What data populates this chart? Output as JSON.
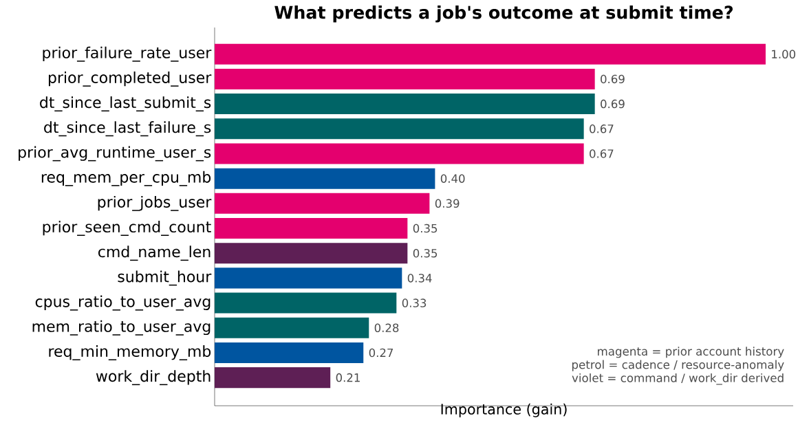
{
  "chart_data": {
    "type": "bar",
    "orientation": "horizontal",
    "title": "What predicts a job's outcome at submit time?",
    "xlabel": "Importance (gain)",
    "categories": [
      "prior_failure_rate_user",
      "prior_completed_user",
      "dt_since_last_submit_s",
      "dt_since_last_failure_s",
      "prior_avg_runtime_user_s",
      "req_mem_per_cpu_mb",
      "prior_jobs_user",
      "prior_seen_cmd_count",
      "cmd_name_len",
      "submit_hour",
      "cpus_ratio_to_user_avg",
      "mem_ratio_to_user_avg",
      "req_min_memory_mb",
      "work_dir_depth"
    ],
    "values": [
      1.0,
      0.69,
      0.69,
      0.67,
      0.67,
      0.4,
      0.39,
      0.35,
      0.35,
      0.34,
      0.33,
      0.28,
      0.27,
      0.21
    ],
    "value_labels": [
      "1.00",
      "0.69",
      "0.69",
      "0.67",
      "0.67",
      "0.40",
      "0.39",
      "0.35",
      "0.35",
      "0.34",
      "0.33",
      "0.28",
      "0.27",
      "0.21"
    ],
    "colors": [
      "#e4006e",
      "#e4006e",
      "#006466",
      "#006466",
      "#e4006e",
      "#0055a0",
      "#e4006e",
      "#e4006e",
      "#5e1f55",
      "#0055a0",
      "#006466",
      "#006466",
      "#0055a0",
      "#5e1f55"
    ],
    "annotations": [
      "magenta = prior account history",
      "petrol = cadence / resource-anomaly",
      "violet = command / work_dir derived"
    ]
  }
}
